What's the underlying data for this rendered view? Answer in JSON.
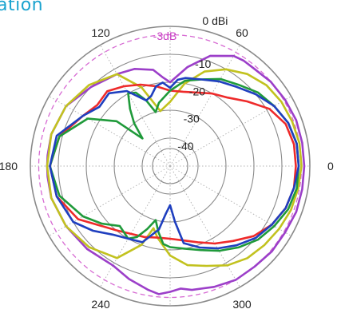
{
  "header": {
    "title_fragment": "ation"
  },
  "chart_data": {
    "type": "polar",
    "angle_labels": [
      "0",
      "60",
      "120",
      "180",
      "240",
      "300"
    ],
    "angle_label_degrees": [
      0,
      60,
      120,
      180,
      240,
      300
    ],
    "radial_labels": [
      "0 dBi",
      "-10",
      "-20",
      "-30",
      "-40"
    ],
    "radial_values_db": [
      0,
      -10,
      -20,
      -30,
      -40
    ],
    "reference_label": "-3dB",
    "reference_value_db": -3,
    "rlim_db": [
      -50,
      0
    ],
    "grid": true,
    "colors": {
      "grid": "#8a8a8a",
      "reference": "#d76bd3",
      "reference_text": "#c83fc3"
    },
    "series": [
      {
        "color": "#9c3fc9",
        "angles": [
          0,
          10,
          20,
          30,
          40,
          50,
          55,
          60,
          70,
          80,
          90,
          95,
          100,
          110,
          120,
          135,
          150,
          165,
          175,
          180,
          185,
          195,
          210,
          225,
          240,
          250,
          260,
          265,
          270,
          275,
          280,
          290,
          300,
          310,
          320,
          330,
          340,
          350,
          360
        ],
        "values": [
          -2,
          -2,
          -2,
          -2.5,
          -3,
          -4,
          -4,
          -4.5,
          -8,
          -14,
          -20,
          -18,
          -15,
          -13,
          -12,
          -10,
          -7,
          -6,
          -6,
          -6,
          -6,
          -6,
          -7,
          -8,
          -9,
          -7,
          -5,
          -4,
          -5,
          -6,
          -5,
          -4,
          -3,
          -3,
          -2.5,
          -2.5,
          -2,
          -2,
          -2
        ]
      },
      {
        "color": "#c2c21f",
        "angles": [
          0,
          10,
          20,
          30,
          40,
          50,
          60,
          70,
          80,
          90,
          100,
          110,
          120,
          135,
          150,
          165,
          180,
          195,
          210,
          225,
          240,
          250,
          255,
          260,
          270,
          280,
          290,
          300,
          310,
          320,
          330,
          340,
          350,
          360
        ],
        "values": [
          -3,
          -3,
          -3.5,
          -4,
          -5,
          -7,
          -10,
          -14,
          -20,
          -27,
          -30,
          -20,
          -12,
          -9,
          -7,
          -6,
          -6,
          -6,
          -7,
          -9,
          -12,
          -20,
          -27,
          -24,
          -18,
          -14,
          -12,
          -9,
          -7,
          -6,
          -5,
          -4,
          -3.5,
          -3
        ]
      },
      {
        "color": "#ee2a2a",
        "angles": [
          0,
          10,
          20,
          30,
          40,
          50,
          60,
          70,
          80,
          90,
          100,
          110,
          120,
          130,
          140,
          150,
          165,
          180,
          195,
          210,
          220,
          230,
          240,
          250,
          260,
          270,
          280,
          290,
          300,
          310,
          320,
          330,
          340,
          350,
          360
        ],
        "values": [
          -5,
          -5,
          -6,
          -9,
          -14,
          -18,
          -20,
          -22,
          -23,
          -23,
          -21,
          -19,
          -17,
          -15,
          -16,
          -14,
          -9,
          -7,
          -8,
          -12,
          -17,
          -20,
          -22,
          -23,
          -24,
          -24,
          -23,
          -21,
          -18,
          -15,
          -11,
          -8,
          -6,
          -5,
          -5
        ]
      },
      {
        "color": "#1f9a3a",
        "angles": [
          0,
          10,
          20,
          30,
          40,
          50,
          60,
          70,
          80,
          90,
          100,
          105,
          110,
          115,
          120,
          125,
          130,
          135,
          140,
          150,
          165,
          180,
          195,
          210,
          220,
          230,
          240,
          245,
          250,
          255,
          260,
          265,
          270,
          280,
          290,
          300,
          310,
          320,
          330,
          340,
          350,
          360
        ],
        "values": [
          -4,
          -4,
          -5,
          -7,
          -9,
          -12,
          -14,
          -17,
          -19,
          -23,
          -27,
          -30,
          -25,
          -21,
          -20,
          -25,
          -30,
          -36,
          -25,
          -16,
          -9,
          -7,
          -9,
          -14,
          -18,
          -22,
          -20,
          -22,
          -26,
          -30,
          -26,
          -22,
          -21,
          -20,
          -18,
          -15,
          -12,
          -9,
          -7,
          -5,
          -4,
          -4
        ]
      },
      {
        "color": "#1f3fbf",
        "angles": [
          0,
          10,
          20,
          30,
          40,
          50,
          60,
          70,
          80,
          85,
          90,
          95,
          100,
          105,
          110,
          120,
          130,
          140,
          150,
          165,
          180,
          195,
          210,
          220,
          230,
          240,
          250,
          260,
          265,
          270,
          275,
          280,
          290,
          300,
          310,
          320,
          330,
          340,
          350,
          360
        ],
        "values": [
          -4,
          -4,
          -5,
          -7,
          -10,
          -13,
          -15,
          -17,
          -18,
          -19,
          -22,
          -20,
          -21,
          -24,
          -25,
          -19,
          -16,
          -17,
          -14,
          -8,
          -7,
          -8,
          -10,
          -14,
          -18,
          -20,
          -21,
          -27,
          -33,
          -36,
          -30,
          -22,
          -19,
          -16,
          -13,
          -10,
          -8,
          -6,
          -5,
          -4
        ]
      }
    ]
  }
}
